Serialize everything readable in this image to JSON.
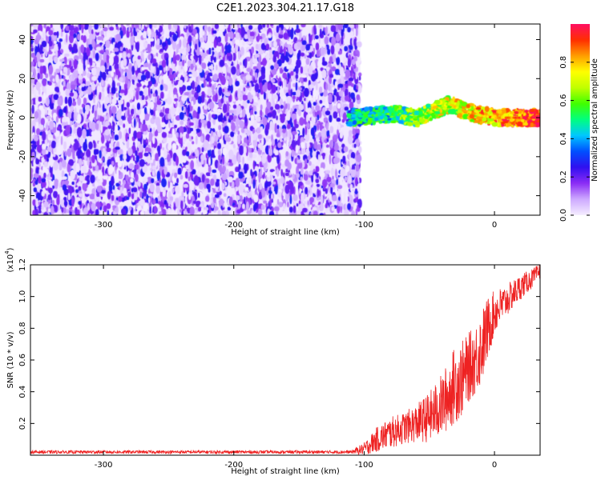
{
  "title": "C2E1.2023.304.21.17.G18",
  "colors": {
    "snr_line": "#ee2222",
    "noise": "#7a1ff0",
    "colormap": [
      "#f4ecff",
      "#cda8ff",
      "#8a2cf5",
      "#3010f0",
      "#0050ff",
      "#00c8ff",
      "#00ff80",
      "#40ff00",
      "#c0ff00",
      "#ffff00",
      "#ffa000",
      "#ff3000",
      "#ff1060"
    ]
  },
  "chart_data": [
    {
      "type": "heatmap",
      "xlabel": "Height of straight line (km)",
      "ylabel": "Frequency (Hz)",
      "xlim": [
        -356,
        35
      ],
      "ylim": [
        -50,
        48
      ],
      "xticks": [
        -300,
        -200,
        -100,
        0
      ],
      "xtick_labels": [
        "-300",
        "-200",
        "-100",
        "0"
      ],
      "yticks": [
        -40,
        -20,
        0,
        20,
        40
      ],
      "ytick_labels": [
        "-40",
        "-20",
        "0",
        "20",
        "40"
      ],
      "colorbar": {
        "label": "Normalized spectral amplitude",
        "range": [
          0,
          1
        ],
        "ticks": [
          0.0,
          0.2,
          0.4,
          0.6,
          0.8
        ],
        "tick_labels": [
          "0.0",
          "0.2",
          "0.4",
          "0.6",
          "0.8"
        ]
      },
      "noise_region_km": [
        -356,
        -103
      ],
      "signal_band": {
        "x_km": [
          -112,
          35
        ],
        "center_hz": [
          [
            -112,
            0
          ],
          [
            -80,
            2
          ],
          [
            -60,
            0
          ],
          [
            -45,
            4
          ],
          [
            -35,
            7
          ],
          [
            -25,
            4
          ],
          [
            -10,
            1
          ],
          [
            0,
            0
          ],
          [
            35,
            0
          ]
        ],
        "halfwidth_hz": 3
      }
    },
    {
      "type": "line",
      "xlabel": "Height of straight line (km)",
      "ylabel": "SNR (10 * v/v)",
      "scale_label": "(x10",
      "scale_exponent": "4",
      "scale_suffix": ")",
      "xlim": [
        -356,
        35
      ],
      "ylim": [
        0,
        1.2
      ],
      "xticks": [
        -300,
        -200,
        -100,
        0
      ],
      "xtick_labels": [
        "-300",
        "-200",
        "-100",
        "0"
      ],
      "yticks": [
        0.2,
        0.4,
        0.6,
        0.8,
        1.0,
        1.2
      ],
      "ytick_labels": [
        "0.2",
        "0.4",
        "0.6",
        "0.8",
        "1.0",
        "1.2"
      ],
      "series": [
        {
          "x": [
            -356,
            -300,
            -250,
            -200,
            -150,
            -110,
            -100,
            -95,
            -90,
            -80,
            -70,
            -60,
            -50,
            -40,
            -35,
            -30,
            -25,
            -20,
            -15,
            -10,
            -5,
            0,
            10,
            20,
            30,
            35
          ],
          "y_mean": [
            0.02,
            0.02,
            0.02,
            0.02,
            0.02,
            0.02,
            0.04,
            0.07,
            0.1,
            0.14,
            0.17,
            0.2,
            0.24,
            0.32,
            0.38,
            0.45,
            0.48,
            0.55,
            0.6,
            0.68,
            0.8,
            0.9,
            0.98,
            1.06,
            1.12,
            1.16
          ],
          "y_spread": [
            0.01,
            0.01,
            0.01,
            0.01,
            0.01,
            0.01,
            0.04,
            0.06,
            0.08,
            0.1,
            0.1,
            0.12,
            0.16,
            0.2,
            0.22,
            0.25,
            0.24,
            0.22,
            0.22,
            0.24,
            0.2,
            0.14,
            0.1,
            0.08,
            0.06,
            0.05
          ]
        }
      ]
    }
  ]
}
